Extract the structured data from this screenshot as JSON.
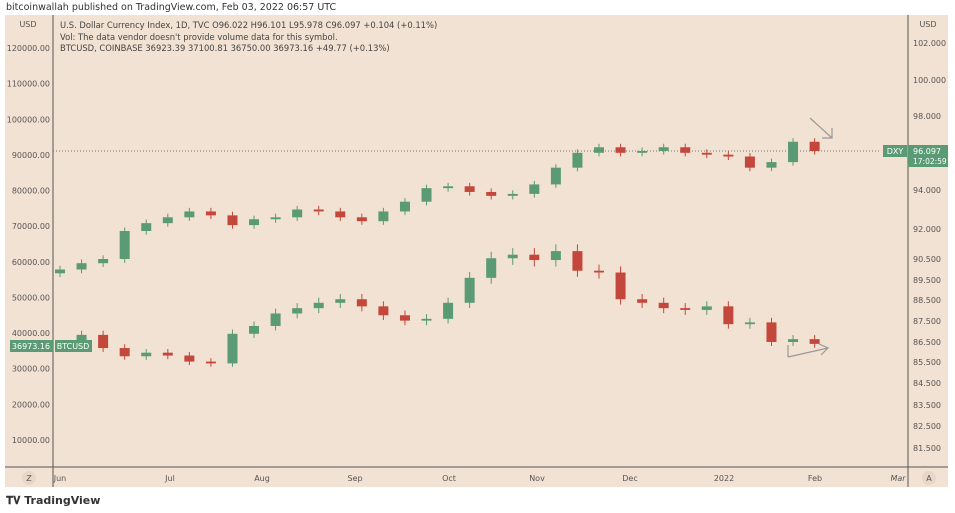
{
  "header": {
    "published": "bitcoinwallah published on TradingView.com, Feb 03, 2022 06:57 UTC"
  },
  "legend": {
    "dxy": "U.S. Dollar Currency Index, 1D, TVC  O96.022  H96.101  L95.978  C96.097  +0.104 (+0.11%)",
    "vol": "Vol: The data vendor doesn't provide volume data for this symbol.",
    "btc": "BTCUSD, COINBASE  36923.39  37100.81  36750.00  36973.16  +49.77 (+0.13%)"
  },
  "axes": {
    "left_currency": "USD",
    "right_currency": "USD",
    "left_button": "Z",
    "right_button": "A"
  },
  "badges": {
    "dxy_name": "DXY",
    "dxy_price": "96.097",
    "dxy_countdown": "17:02:59",
    "btc_name": "BTCUSD",
    "btc_price": "36973.16"
  },
  "brand": "TradingView",
  "colors": {
    "up": "#5a9a74",
    "down": "#c4473b",
    "background": "#f2e2d3"
  },
  "chart_data": {
    "type": "candlestick",
    "x_ticks": [
      "Jun",
      "Jul",
      "Aug",
      "Sep",
      "Oct",
      "Nov",
      "Dec",
      "2022",
      "Feb",
      "Mar"
    ],
    "left_ticks": [
      "120000.00",
      "110000.00",
      "100000.00",
      "90000.00",
      "80000.00",
      "70000.00",
      "60000.00",
      "50000.00",
      "40000.00",
      "30000.00",
      "20000.00",
      "10000.00"
    ],
    "right_ticks": [
      "102.000",
      "100.000",
      "98.000",
      "94.000",
      "92.000",
      "90.500",
      "89.500",
      "88.500",
      "87.500",
      "86.500",
      "85.500",
      "84.500",
      "83.500",
      "82.500",
      "81.500"
    ],
    "x_start": "2021-06-01",
    "interval_days": 7,
    "series": [
      {
        "name": "DXY",
        "axis": "right",
        "closes": [
          90.0,
          90.3,
          90.5,
          91.9,
          92.3,
          92.6,
          92.9,
          92.7,
          92.2,
          92.5,
          92.6,
          93.0,
          92.9,
          92.6,
          92.4,
          92.9,
          93.4,
          94.1,
          94.2,
          93.9,
          93.7,
          93.8,
          94.3,
          95.2,
          96.0,
          96.3,
          96.0,
          96.1,
          96.3,
          96.0,
          95.9,
          95.8,
          95.2,
          95.5,
          96.6,
          96.097
        ]
      },
      {
        "name": "BTCUSD",
        "axis": "left",
        "closes": [
          36500,
          39500,
          35800,
          33500,
          34500,
          33700,
          32000,
          31500,
          39800,
          42000,
          45500,
          47000,
          48500,
          49500,
          47500,
          45000,
          43500,
          44000,
          48500,
          55500,
          61000,
          62000,
          60500,
          63000,
          57500,
          57000,
          49500,
          48500,
          47000,
          46500,
          47500,
          42500,
          43000,
          37500,
          38300,
          36973.16
        ]
      }
    ]
  }
}
